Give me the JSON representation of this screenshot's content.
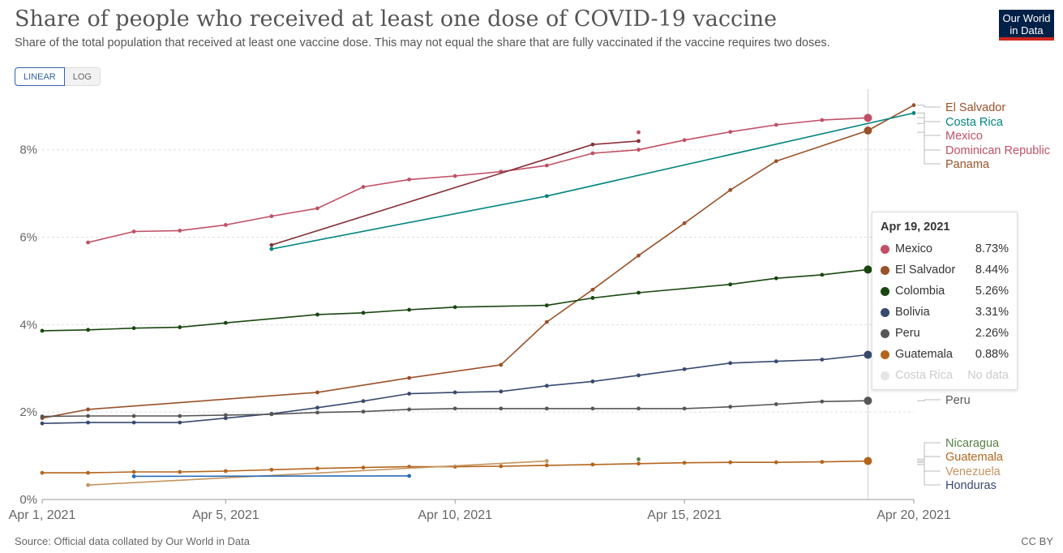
{
  "header": {
    "title": "Share of people who received at least one dose of COVID-19 vaccine",
    "subtitle": "Share of the total population that received at least one vaccine dose. This may not equal the share that are fully vaccinated if the vaccine requires two doses.",
    "logo_line1": "Our World",
    "logo_line2": "in Data"
  },
  "controls": {
    "linear_label": "LINEAR",
    "log_label": "LOG",
    "selected": "LINEAR"
  },
  "footer": {
    "source": "Source: Official data collated by Our World in Data",
    "license": "CC BY"
  },
  "tooltip": {
    "date": "Apr 19, 2021",
    "rows": [
      {
        "name": "Mexico",
        "value": "8.73%",
        "color": "#c15065"
      },
      {
        "name": "El Salvador",
        "value": "8.44%",
        "color": "#9a5129"
      },
      {
        "name": "Colombia",
        "value": "5.26%",
        "color": "#18470f"
      },
      {
        "name": "Bolivia",
        "value": "3.31%",
        "color": "#38496e"
      },
      {
        "name": "Peru",
        "value": "2.26%",
        "color": "#565656"
      },
      {
        "name": "Guatemala",
        "value": "0.88%",
        "color": "#b4651c"
      },
      {
        "name": "Costa Rica",
        "value": "No data",
        "color": "#e5e5e5",
        "nodata": true
      }
    ]
  },
  "chart_data": {
    "type": "line",
    "title": "Share of people who received at least one dose of COVID-19 vaccine",
    "x_axis": {
      "type": "date",
      "range": [
        "2021-04-01",
        "2021-04-20"
      ],
      "ticks": [
        {
          "date": "2021-04-01",
          "label": "Apr 1, 2021"
        },
        {
          "date": "2021-04-05",
          "label": "Apr 5, 2021"
        },
        {
          "date": "2021-04-10",
          "label": "Apr 10, 2021"
        },
        {
          "date": "2021-04-15",
          "label": "Apr 15, 2021"
        },
        {
          "date": "2021-04-20",
          "label": "Apr 20, 2021"
        }
      ]
    },
    "y_axis": {
      "unit": "%",
      "range": [
        0,
        9.2
      ],
      "ticks": [
        {
          "value": 0,
          "label": "0%"
        },
        {
          "value": 2,
          "label": "2%"
        },
        {
          "value": 4,
          "label": "4%"
        },
        {
          "value": 6,
          "label": "6%"
        },
        {
          "value": 8,
          "label": "8%"
        }
      ]
    },
    "grid": true,
    "hover_date": "2021-04-19",
    "series": [
      {
        "name": "Mexico",
        "color": "#c15065",
        "points": [
          [
            "2021-04-02",
            5.88
          ],
          [
            "2021-04-03",
            6.13
          ],
          [
            "2021-04-04",
            6.15
          ],
          [
            "2021-04-05",
            6.28
          ],
          [
            "2021-04-06",
            6.48
          ],
          [
            "2021-04-07",
            6.66
          ],
          [
            "2021-04-08",
            7.15
          ],
          [
            "2021-04-09",
            7.32
          ],
          [
            "2021-04-10",
            7.4
          ],
          [
            "2021-04-11",
            7.5
          ],
          [
            "2021-04-12",
            7.64
          ],
          [
            "2021-04-13",
            7.92
          ],
          [
            "2021-04-14",
            8.0
          ],
          [
            "2021-04-15",
            8.22
          ],
          [
            "2021-04-16",
            8.41
          ],
          [
            "2021-04-17",
            8.57
          ],
          [
            "2021-04-18",
            8.68
          ],
          [
            "2021-04-19",
            8.73
          ]
        ]
      },
      {
        "name": "El Salvador",
        "color": "#9a5129",
        "points": [
          [
            "2021-04-01",
            1.86
          ],
          [
            "2021-04-02",
            2.06
          ],
          [
            "2021-04-07",
            2.45
          ],
          [
            "2021-04-09",
            2.78
          ],
          [
            "2021-04-11",
            3.08
          ],
          [
            "2021-04-12",
            4.06
          ],
          [
            "2021-04-13",
            4.8
          ],
          [
            "2021-04-14",
            5.58
          ],
          [
            "2021-04-15",
            6.32
          ],
          [
            "2021-04-16",
            7.08
          ],
          [
            "2021-04-17",
            7.74
          ],
          [
            "2021-04-19",
            8.44
          ],
          [
            "2021-04-20",
            9.02
          ]
        ]
      },
      {
        "name": "Costa Rica",
        "color": "#00847e",
        "points": [
          [
            "2021-04-06",
            5.73
          ],
          [
            "2021-04-12",
            6.94
          ],
          [
            "2021-04-20",
            8.84
          ]
        ]
      },
      {
        "name": "Dominican Republic",
        "color": "#883039",
        "points": [
          [
            "2021-04-06",
            5.82
          ],
          [
            "2021-04-13",
            8.12
          ],
          [
            "2021-04-14",
            8.2
          ]
        ]
      },
      {
        "name": "Panama",
        "color": "#c15065",
        "points": [
          [
            "2021-04-14",
            8.4
          ]
        ]
      },
      {
        "name": "Colombia",
        "color": "#18470f",
        "points": [
          [
            "2021-04-01",
            3.86
          ],
          [
            "2021-04-02",
            3.88
          ],
          [
            "2021-04-03",
            3.92
          ],
          [
            "2021-04-04",
            3.94
          ],
          [
            "2021-04-05",
            4.04
          ],
          [
            "2021-04-07",
            4.23
          ],
          [
            "2021-04-08",
            4.27
          ],
          [
            "2021-04-09",
            4.34
          ],
          [
            "2021-04-10",
            4.4
          ],
          [
            "2021-04-12",
            4.44
          ],
          [
            "2021-04-13",
            4.61
          ],
          [
            "2021-04-14",
            4.73
          ],
          [
            "2021-04-16",
            4.92
          ],
          [
            "2021-04-17",
            5.06
          ],
          [
            "2021-04-18",
            5.14
          ],
          [
            "2021-04-19",
            5.26
          ]
        ]
      },
      {
        "name": "Bolivia",
        "color": "#38496e",
        "points": [
          [
            "2021-04-01",
            1.74
          ],
          [
            "2021-04-02",
            1.76
          ],
          [
            "2021-04-03",
            1.76
          ],
          [
            "2021-04-04",
            1.76
          ],
          [
            "2021-04-05",
            1.86
          ],
          [
            "2021-04-06",
            1.96
          ],
          [
            "2021-04-07",
            2.1
          ],
          [
            "2021-04-08",
            2.25
          ],
          [
            "2021-04-09",
            2.42
          ],
          [
            "2021-04-10",
            2.45
          ],
          [
            "2021-04-11",
            2.47
          ],
          [
            "2021-04-12",
            2.6
          ],
          [
            "2021-04-13",
            2.7
          ],
          [
            "2021-04-14",
            2.84
          ],
          [
            "2021-04-15",
            2.98
          ],
          [
            "2021-04-16",
            3.12
          ],
          [
            "2021-04-17",
            3.16
          ],
          [
            "2021-04-18",
            3.2
          ],
          [
            "2021-04-19",
            3.31
          ]
        ]
      },
      {
        "name": "Peru",
        "color": "#565656",
        "points": [
          [
            "2021-04-01",
            1.9
          ],
          [
            "2021-04-02",
            1.91
          ],
          [
            "2021-04-03",
            1.91
          ],
          [
            "2021-04-04",
            1.91
          ],
          [
            "2021-04-05",
            1.93
          ],
          [
            "2021-04-06",
            1.95
          ],
          [
            "2021-04-07",
            1.99
          ],
          [
            "2021-04-08",
            2.01
          ],
          [
            "2021-04-09",
            2.06
          ],
          [
            "2021-04-10",
            2.08
          ],
          [
            "2021-04-11",
            2.08
          ],
          [
            "2021-04-12",
            2.08
          ],
          [
            "2021-04-13",
            2.08
          ],
          [
            "2021-04-14",
            2.08
          ],
          [
            "2021-04-15",
            2.08
          ],
          [
            "2021-04-16",
            2.12
          ],
          [
            "2021-04-17",
            2.18
          ],
          [
            "2021-04-18",
            2.24
          ],
          [
            "2021-04-19",
            2.26
          ]
        ]
      },
      {
        "name": "Guatemala",
        "color": "#b4651c",
        "points": [
          [
            "2021-04-01",
            0.61
          ],
          [
            "2021-04-02",
            0.61
          ],
          [
            "2021-04-03",
            0.63
          ],
          [
            "2021-04-04",
            0.63
          ],
          [
            "2021-04-05",
            0.65
          ],
          [
            "2021-04-06",
            0.68
          ],
          [
            "2021-04-07",
            0.71
          ],
          [
            "2021-04-08",
            0.73
          ],
          [
            "2021-04-09",
            0.75
          ],
          [
            "2021-04-10",
            0.75
          ],
          [
            "2021-04-11",
            0.76
          ],
          [
            "2021-04-12",
            0.78
          ],
          [
            "2021-04-13",
            0.8
          ],
          [
            "2021-04-14",
            0.82
          ],
          [
            "2021-04-15",
            0.84
          ],
          [
            "2021-04-16",
            0.85
          ],
          [
            "2021-04-17",
            0.85
          ],
          [
            "2021-04-18",
            0.86
          ],
          [
            "2021-04-19",
            0.88
          ]
        ]
      },
      {
        "name": "Nicaragua",
        "color": "#578145",
        "points": [
          [
            "2021-04-14",
            0.92
          ]
        ]
      },
      {
        "name": "Venezuela",
        "color": "#c4945f",
        "points": [
          [
            "2021-04-02",
            0.33
          ],
          [
            "2021-04-12",
            0.88
          ]
        ]
      },
      {
        "name": "Honduras",
        "color": "#286bbb",
        "points": [
          [
            "2021-04-03",
            0.53
          ],
          [
            "2021-04-09",
            0.54
          ]
        ]
      }
    ],
    "right_labels": [
      {
        "text": "El Salvador",
        "color": "#9a5129"
      },
      {
        "text": "Costa Rica",
        "color": "#00847e"
      },
      {
        "text": "Mexico",
        "color": "#c15065"
      },
      {
        "text": "Dominican Republic",
        "color": "#c15065"
      },
      {
        "text": "Panama",
        "color": "#9a5129"
      },
      {
        "text": "Peru",
        "color": "#565656"
      },
      {
        "text": "Nicaragua",
        "color": "#578145"
      },
      {
        "text": "Guatemala",
        "color": "#b4651c"
      },
      {
        "text": "Venezuela",
        "color": "#c4945f"
      },
      {
        "text": "Honduras",
        "color": "#38496e"
      }
    ]
  }
}
